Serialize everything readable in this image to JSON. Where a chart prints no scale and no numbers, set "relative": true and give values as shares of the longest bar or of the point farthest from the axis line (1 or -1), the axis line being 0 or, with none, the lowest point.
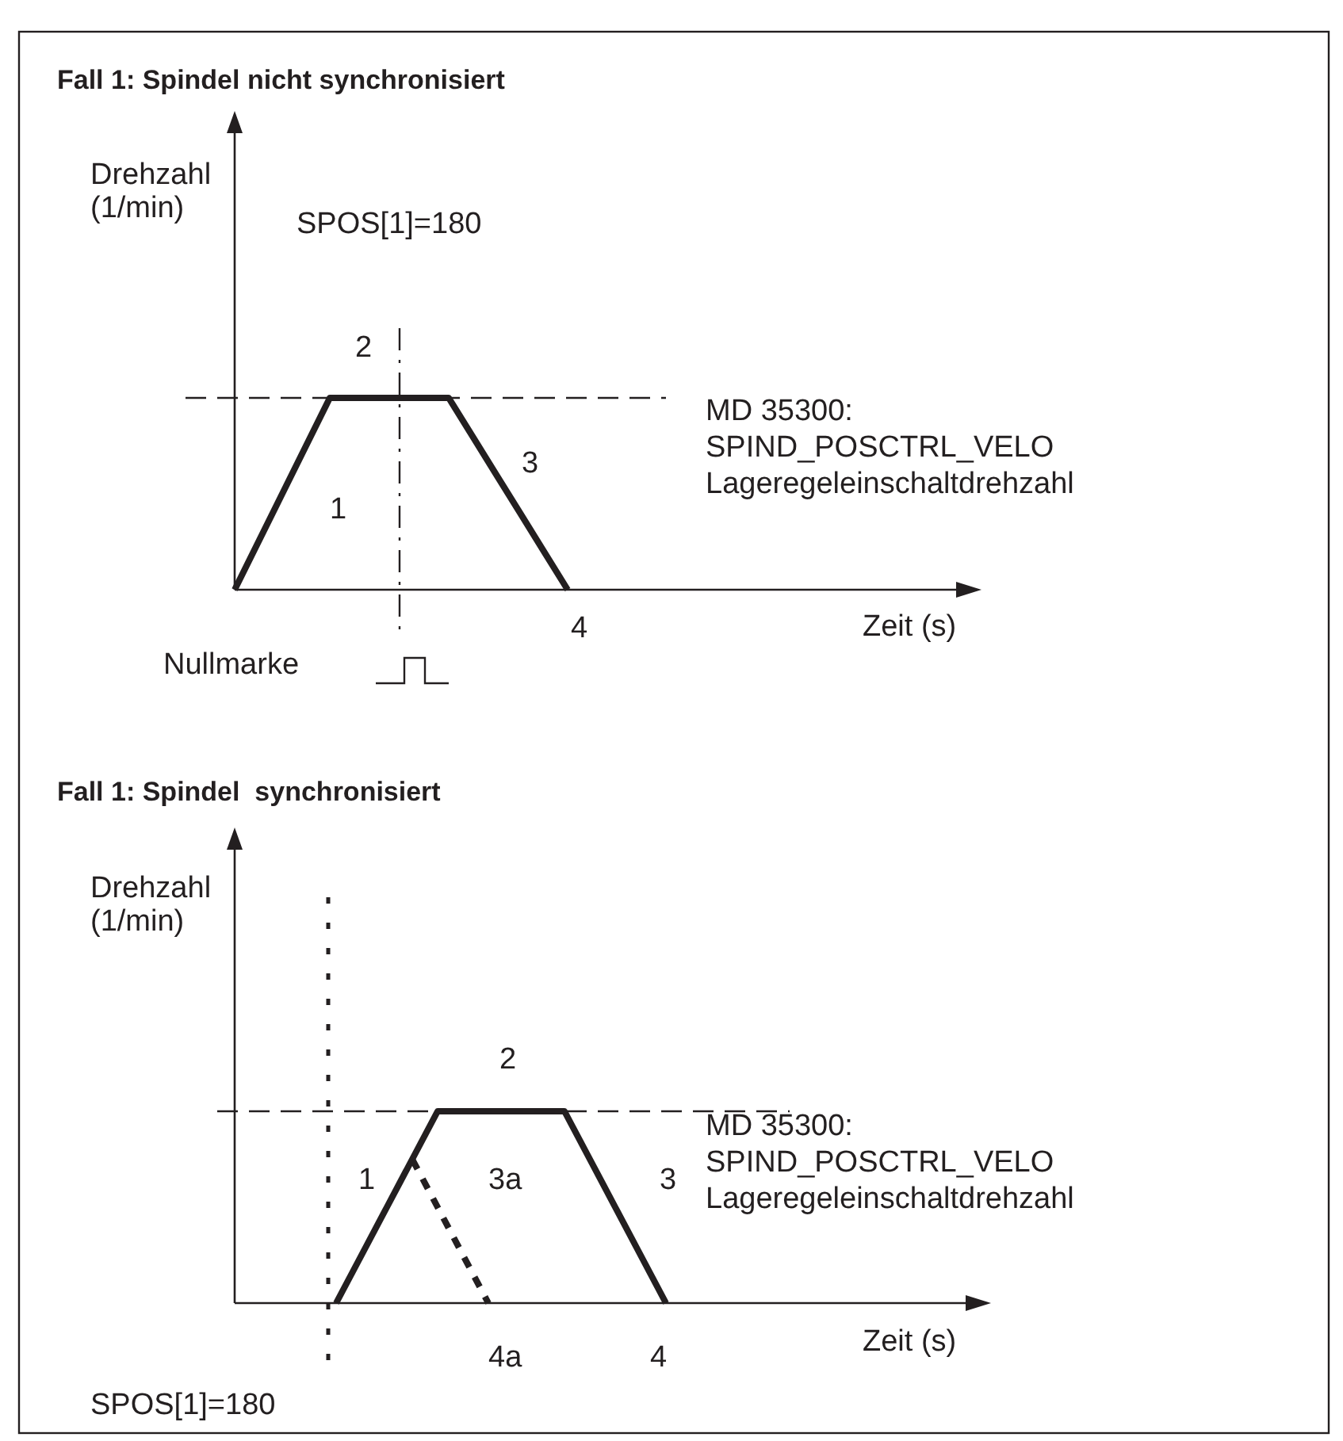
{
  "chart_data": [
    {
      "type": "line",
      "title": "Fall 1: Spindel nicht synchronisiert",
      "xlabel": "Zeit (s)",
      "ylabel": "Drehzahl\n(1/min)",
      "relative": true,
      "categories": [
        null,
        null,
        null,
        null,
        null,
        null,
        null,
        null,
        null,
        null,
        null,
        null,
        null,
        null,
        null,
        null,
        null,
        null,
        null,
        null,
        null,
        null,
        null,
        null,
        null,
        null,
        null,
        null,
        null,
        null,
        null
      ],
      "series": [
        {
          "color": "#231f20",
          "values": [
            0,
            0.25,
            0.5,
            0.75,
            1,
            1,
            1,
            1,
            1,
            1,
            0.8,
            0.6,
            0.4,
            0.2,
            0,
            null,
            null,
            null,
            null,
            null,
            null,
            null,
            null,
            null,
            null,
            null,
            null,
            null,
            null,
            null,
            null
          ]
        }
      ],
      "ref_lines": [
        {
          "axis": "y",
          "value": 1,
          "label": "MD 35300:\nSPIND_POSCTRL_VELO\nLageregeleinschaltdrehzahl",
          "color": "#231f20",
          "line_style": "dashed"
        }
      ],
      "annotations": [
        "SPOS[1]=180",
        "1",
        "2",
        "3",
        "4",
        "Nullmarke"
      ]
    },
    {
      "type": "line",
      "title": "Fall 1: Spindel  synchronisiert",
      "xlabel": "Zeit (s)",
      "ylabel": "Drehzahl\n(1/min)",
      "relative": true,
      "categories": [
        null,
        null,
        null,
        null,
        null,
        null,
        null,
        null,
        null,
        null,
        null,
        null,
        null,
        null,
        null,
        null,
        null,
        null,
        null,
        null,
        null,
        null,
        null,
        null,
        null,
        null,
        null,
        null,
        null
      ],
      "series": [
        {
          "color": "#231f20",
          "values": [
            null,
            null,
            null,
            null,
            0,
            0.25,
            0.5,
            0.75,
            1,
            1,
            1,
            1,
            1,
            1,
            0.75,
            0.5,
            0.25,
            0,
            null,
            null,
            null,
            null,
            null,
            null,
            null,
            null,
            null,
            null,
            null
          ]
        },
        {
          "color": "#231f20",
          "line_style": "dashed",
          "values": [
            null,
            null,
            null,
            null,
            null,
            null,
            null,
            0.75,
            0.5,
            0.25,
            0,
            null,
            null,
            null,
            null,
            null,
            null,
            null,
            null,
            null,
            null,
            null,
            null,
            null,
            null,
            null,
            null,
            null,
            null
          ]
        }
      ],
      "ref_lines": [
        {
          "axis": "y",
          "value": 1,
          "label": "MD 35300:\nSPIND_POSCTRL_VELO\nLageregeleinschaltdrehzahl",
          "color": "#231f20",
          "line_style": "dashed"
        }
      ],
      "annotations": [
        "1",
        "2",
        "3a",
        "3",
        "4a",
        "4",
        "SPOS[1]=180"
      ]
    }
  ]
}
